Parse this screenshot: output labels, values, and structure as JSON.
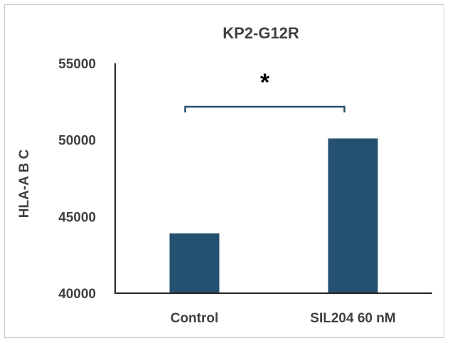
{
  "chart_data": {
    "type": "bar",
    "title": "KP2-G12R",
    "xlabel": "",
    "ylabel": "HLA-A B C",
    "categories": [
      "Control",
      "SIL204 60 nM"
    ],
    "values": [
      43900,
      50100
    ],
    "ylim": [
      40000,
      55000
    ],
    "yticks": [
      40000,
      45000,
      50000,
      55000
    ],
    "grid": false,
    "legend": "none",
    "bar_color": "#255170",
    "bracket_color": "#255170",
    "significance": {
      "label": "*",
      "between": [
        "Control",
        "SIL204 60 nM"
      ]
    }
  }
}
